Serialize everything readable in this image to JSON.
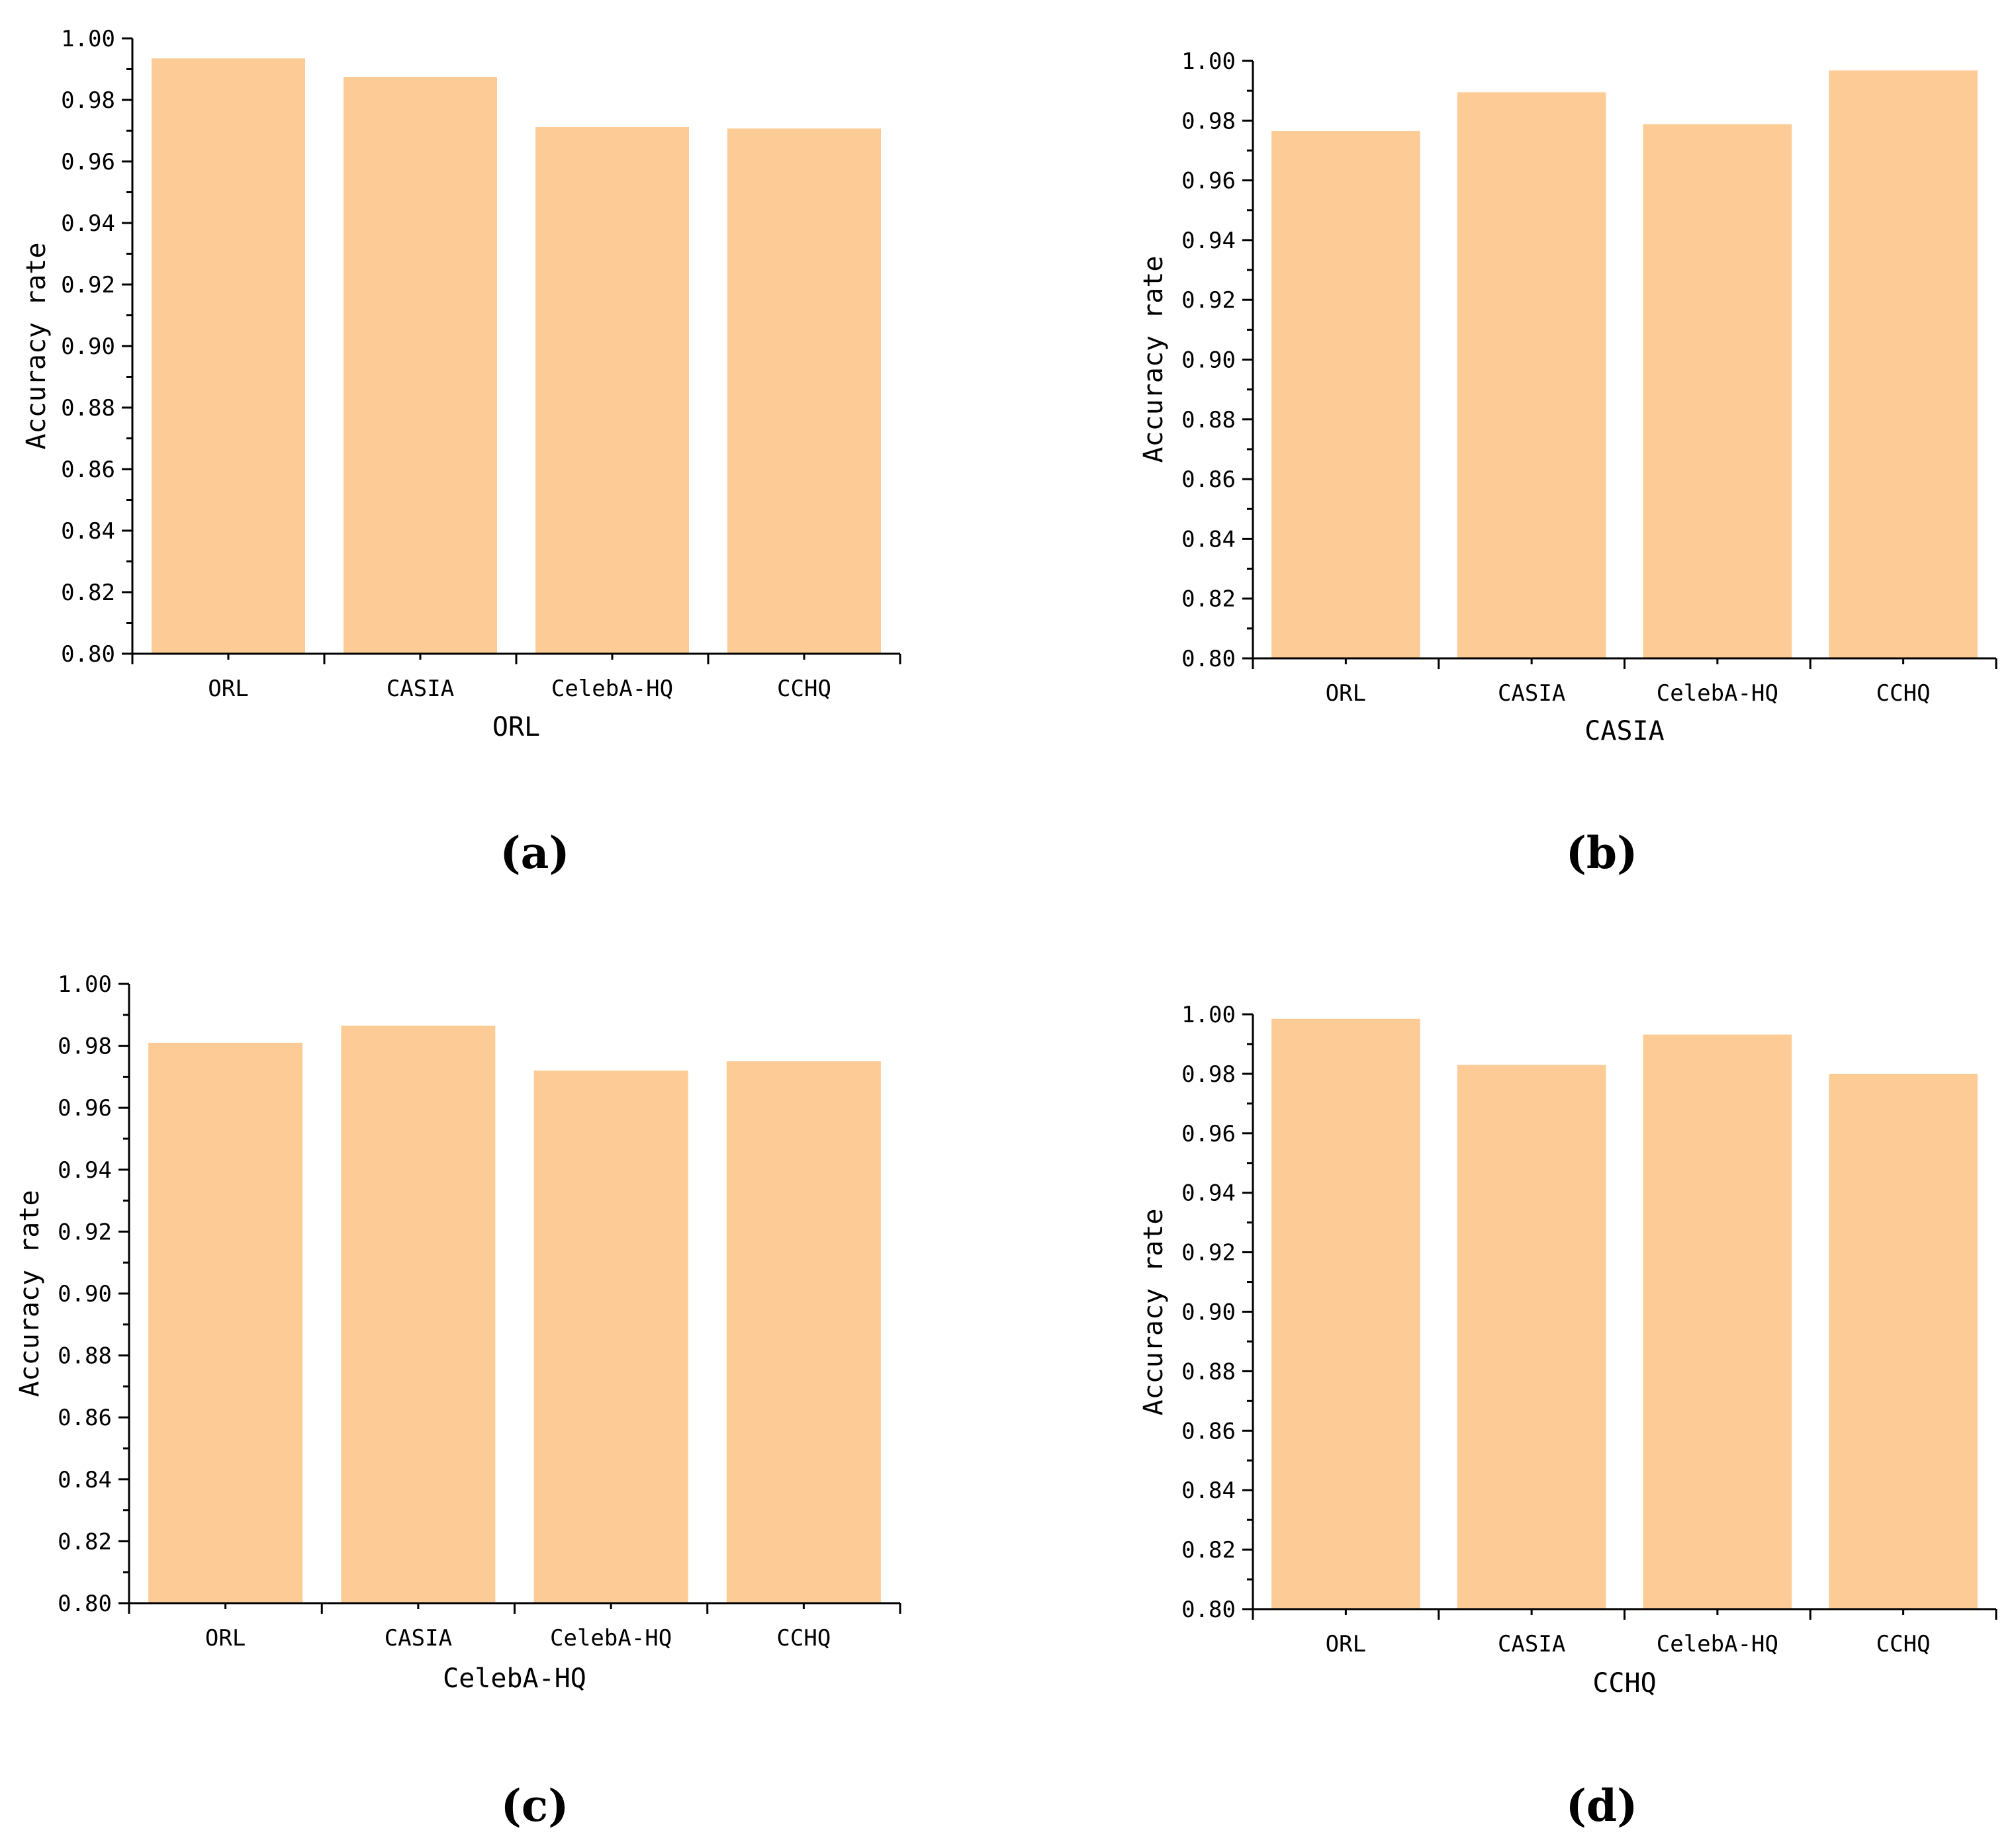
{
  "figure": {
    "panel_labels": [
      "(a)",
      "(b)",
      "(c)",
      "(d)"
    ]
  },
  "colors": {
    "bar": "#FDCC96",
    "axis": "#000000"
  },
  "chart_data": [
    {
      "type": "bar",
      "title": "",
      "xlabel": "ORL",
      "ylabel": "Accuracy rate",
      "ylim": [
        0.8,
        1.0
      ],
      "yticks": [
        "0.80",
        "0.82",
        "0.84",
        "0.86",
        "0.88",
        "0.90",
        "0.92",
        "0.94",
        "0.96",
        "0.98",
        "1.00"
      ],
      "categories": [
        "ORL",
        "CASIA",
        "CelebA-HQ",
        "CCHQ"
      ],
      "values": [
        0.9935,
        0.9875,
        0.9712,
        0.9707
      ],
      "grid": false,
      "legend": "none"
    },
    {
      "type": "bar",
      "title": "",
      "xlabel": "CASIA",
      "ylabel": "Accuracy rate",
      "ylim": [
        0.8,
        1.0
      ],
      "yticks": [
        "0.80",
        "0.82",
        "0.84",
        "0.86",
        "0.88",
        "0.90",
        "0.92",
        "0.94",
        "0.96",
        "0.98",
        "1.00"
      ],
      "categories": [
        "ORL",
        "CASIA",
        "CelebA-HQ",
        "CCHQ"
      ],
      "values": [
        0.9765,
        0.9895,
        0.9788,
        0.9968
      ],
      "grid": false,
      "legend": "none"
    },
    {
      "type": "bar",
      "title": "",
      "xlabel": "CelebA-HQ",
      "ylabel": "Accuracy rate",
      "ylim": [
        0.8,
        1.0
      ],
      "yticks": [
        "0.80",
        "0.82",
        "0.84",
        "0.86",
        "0.88",
        "0.90",
        "0.92",
        "0.94",
        "0.96",
        "0.98",
        "1.00"
      ],
      "categories": [
        "ORL",
        "CASIA",
        "CelebA-HQ",
        "CCHQ"
      ],
      "values": [
        0.981,
        0.9865,
        0.972,
        0.975
      ],
      "grid": false,
      "legend": "none"
    },
    {
      "type": "bar",
      "title": "",
      "xlabel": "CCHQ",
      "ylabel": "Accuracy rate",
      "ylim": [
        0.8,
        1.0
      ],
      "yticks": [
        "0.80",
        "0.82",
        "0.84",
        "0.86",
        "0.88",
        "0.90",
        "0.92",
        "0.94",
        "0.96",
        "0.98",
        "1.00"
      ],
      "categories": [
        "ORL",
        "CASIA",
        "CelebA-HQ",
        "CCHQ"
      ],
      "values": [
        0.9985,
        0.983,
        0.9932,
        0.98
      ],
      "grid": false,
      "legend": "none"
    }
  ]
}
